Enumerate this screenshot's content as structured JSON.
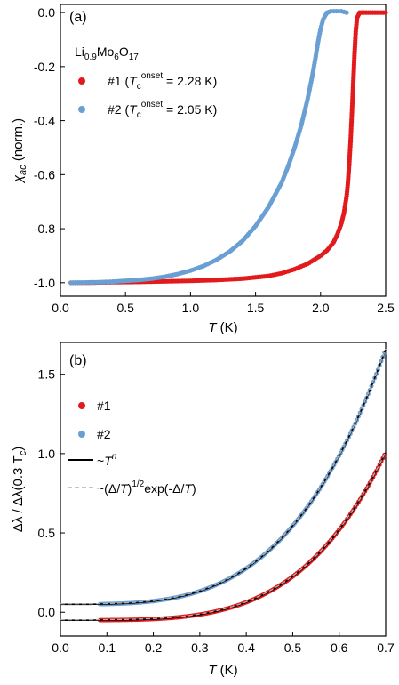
{
  "chart_data": [
    {
      "type": "scatter",
      "panel_label": "(a)",
      "xlabel_italic": "T",
      "xlabel_unit": " (K)",
      "ylabel_chi": "χ",
      "ylabel_sub": "ac",
      "ylabel_rest": " (norm.)",
      "xlim": [
        0.0,
        2.5
      ],
      "ylim": [
        -1.05,
        0.03
      ],
      "x_ticks": [
        0.0,
        0.5,
        1.0,
        1.5,
        2.0,
        2.5
      ],
      "x_tick_labels": [
        "0.0",
        "0.5",
        "1.0",
        "1.5",
        "2.0",
        "2.5"
      ],
      "y_ticks": [
        0.0,
        -0.2,
        -0.4,
        -0.6,
        -0.8,
        -1.0
      ],
      "y_tick_labels": [
        "0.0",
        "-0.2",
        "-0.4",
        "-0.6",
        "-0.8",
        "-1.0"
      ],
      "grid": false,
      "legend_position": "top-left",
      "legend_title": {
        "base": "Li",
        "sub1": "0.9",
        "mid": "Mo",
        "sub2": "6",
        "mid2": "O",
        "sub3": "17"
      },
      "series": [
        {
          "name": "#1 (Tc onset = 2.28 K)",
          "legend_prefix": "#1 (",
          "legend_T": "T",
          "legend_c": "c",
          "legend_sup": "onset",
          "legend_suffix": " = 2.28 K)",
          "color": "#e31a1c",
          "x": [
            0.08,
            0.2,
            0.4,
            0.6,
            0.8,
            1.0,
            1.2,
            1.4,
            1.5,
            1.6,
            1.7,
            1.8,
            1.9,
            2.0,
            2.05,
            2.1,
            2.13,
            2.16,
            2.18,
            2.2,
            2.21,
            2.22,
            2.23,
            2.24,
            2.25,
            2.26,
            2.27,
            2.28,
            2.3,
            2.35,
            2.4,
            2.45,
            2.5
          ],
          "y": [
            -1.0,
            -1.0,
            -0.998,
            -0.997,
            -0.995,
            -0.993,
            -0.99,
            -0.985,
            -0.98,
            -0.975,
            -0.965,
            -0.95,
            -0.93,
            -0.9,
            -0.88,
            -0.85,
            -0.82,
            -0.78,
            -0.74,
            -0.68,
            -0.63,
            -0.56,
            -0.48,
            -0.38,
            -0.27,
            -0.16,
            -0.07,
            -0.02,
            0.0,
            0.0,
            0.0,
            0.0,
            0.0
          ]
        },
        {
          "name": "#2 (Tc onset = 2.05 K)",
          "legend_prefix": "#2 (",
          "legend_T": "T",
          "legend_c": "c",
          "legend_sup": "onset",
          "legend_suffix": " = 2.05 K)",
          "color": "#6a9fd4",
          "x": [
            0.08,
            0.2,
            0.3,
            0.4,
            0.5,
            0.6,
            0.7,
            0.8,
            0.9,
            1.0,
            1.1,
            1.2,
            1.3,
            1.4,
            1.5,
            1.6,
            1.7,
            1.75,
            1.8,
            1.85,
            1.9,
            1.93,
            1.96,
            1.98,
            2.0,
            2.02,
            2.04,
            2.05,
            2.08,
            2.12,
            2.16,
            2.2
          ],
          "y": [
            -1.0,
            -0.999,
            -0.998,
            -0.996,
            -0.993,
            -0.99,
            -0.985,
            -0.978,
            -0.968,
            -0.955,
            -0.938,
            -0.915,
            -0.885,
            -0.845,
            -0.79,
            -0.72,
            -0.63,
            -0.57,
            -0.5,
            -0.42,
            -0.32,
            -0.25,
            -0.17,
            -0.11,
            -0.06,
            -0.025,
            -0.008,
            0.0,
            0.005,
            0.005,
            0.005,
            0.0
          ]
        }
      ]
    },
    {
      "type": "scatter",
      "panel_label": "(b)",
      "xlabel_italic": "T",
      "xlabel_unit": " (K)",
      "ylabel_text": "Δλ / Δλ(0.3 T",
      "ylabel_sub": "c",
      "ylabel_close": ")",
      "xlim": [
        0.0,
        0.7
      ],
      "ylim": [
        -0.15,
        1.7
      ],
      "x_ticks": [
        0.0,
        0.1,
        0.2,
        0.3,
        0.4,
        0.5,
        0.6,
        0.7
      ],
      "x_tick_labels": [
        "0.0",
        "0.1",
        "0.2",
        "0.3",
        "0.4",
        "0.5",
        "0.6",
        "0.7"
      ],
      "y_ticks": [
        0.0,
        0.5,
        1.0,
        1.5
      ],
      "y_tick_labels": [
        "0.0",
        "0.5",
        "1.0",
        "1.5"
      ],
      "grid": false,
      "legend_position": "top-left",
      "series": [
        {
          "name": "#1",
          "color": "#e31a1c",
          "offset": -0.05,
          "n": 4.0,
          "A": 4.4
        },
        {
          "name": "#2",
          "color": "#6a9fd4",
          "offset": 0.05,
          "n": 3.5,
          "A": 5.6
        }
      ],
      "fits": [
        {
          "name": "~T^n",
          "legend_base": "~",
          "legend_T": "T",
          "legend_sup": "n",
          "color": "#000000",
          "style": "solid"
        },
        {
          "name": "~(Δ/T)^1/2 exp(-Δ/T)",
          "legend_a": "~(Δ/",
          "legend_T1": "T",
          "legend_b": ")",
          "legend_sup": "1/2",
          "legend_c": "exp(-Δ/",
          "legend_T2": "T",
          "legend_d": ")",
          "color": "#b0b0b0",
          "style": "dashed"
        }
      ],
      "x_start": 0.085,
      "x_end": 0.7
    }
  ]
}
